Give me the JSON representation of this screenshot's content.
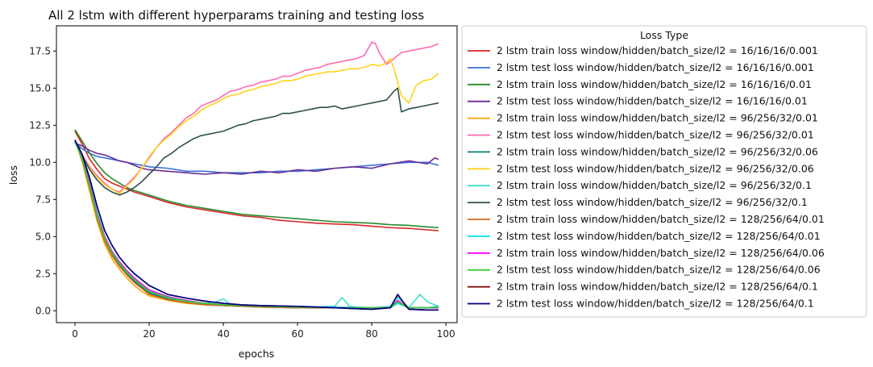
{
  "chart_data": {
    "type": "line",
    "title": "All 2 lstm with different hyperparams training and testing loss",
    "xlabel": "epochs",
    "ylabel": "loss",
    "xlim": [
      -5,
      103
    ],
    "ylim": [
      -0.8,
      19.2
    ],
    "xticks": [
      0,
      20,
      40,
      60,
      80,
      100
    ],
    "yticks": [
      0.0,
      2.5,
      5.0,
      7.5,
      10.0,
      12.5,
      15.0,
      17.5
    ],
    "xtick_labels": [
      "0",
      "20",
      "40",
      "60",
      "80",
      "100"
    ],
    "ytick_labels": [
      "0.0",
      "2.5",
      "5.0",
      "7.5",
      "10.0",
      "12.5",
      "15.0",
      "17.5"
    ],
    "grid": false,
    "legend_title": "Loss Type",
    "legend_placement": "outside-right",
    "series": [
      {
        "name": "2 lstm train loss window/hidden/batch_size/l2 = 16/16/16/0.001",
        "color": "#d62728",
        "x": [
          0,
          2,
          4,
          6,
          8,
          10,
          12,
          14,
          16,
          20,
          25,
          30,
          35,
          40,
          45,
          50,
          55,
          60,
          65,
          70,
          75,
          80,
          85,
          90,
          95,
          98
        ],
        "values": [
          12.1,
          11.2,
          10.2,
          9.5,
          8.9,
          8.6,
          8.4,
          8.2,
          8.0,
          7.7,
          7.3,
          7.0,
          6.8,
          6.6,
          6.4,
          6.3,
          6.1,
          6.0,
          5.9,
          5.85,
          5.8,
          5.7,
          5.6,
          5.55,
          5.45,
          5.4
        ]
      },
      {
        "name": "2 lstm test loss window/hidden/batch_size/l2  = 16/16/16/0.001",
        "color": "#3a6fd8",
        "x": [
          0,
          2,
          4,
          6,
          8,
          10,
          12,
          14,
          16,
          18,
          20,
          25,
          30,
          35,
          40,
          45,
          50,
          55,
          60,
          65,
          70,
          75,
          80,
          85,
          90,
          95,
          98
        ],
        "values": [
          11.3,
          10.9,
          10.6,
          10.4,
          10.3,
          10.2,
          10.1,
          10.0,
          9.9,
          9.8,
          9.7,
          9.6,
          9.4,
          9.4,
          9.3,
          9.3,
          9.3,
          9.4,
          9.4,
          9.5,
          9.6,
          9.7,
          9.8,
          9.9,
          10.0,
          10.0,
          9.8
        ]
      },
      {
        "name": "2 lstm train loss window/hidden/batch_size/l2 = 16/16/16/0.01",
        "color": "#2a8a2a",
        "x": [
          0,
          2,
          4,
          6,
          8,
          10,
          12,
          14,
          16,
          20,
          25,
          30,
          35,
          40,
          45,
          50,
          55,
          60,
          65,
          70,
          75,
          80,
          85,
          90,
          95,
          98
        ],
        "values": [
          12.2,
          11.4,
          10.6,
          9.9,
          9.3,
          8.9,
          8.6,
          8.3,
          8.1,
          7.8,
          7.4,
          7.1,
          6.9,
          6.7,
          6.5,
          6.4,
          6.3,
          6.2,
          6.1,
          6.0,
          5.95,
          5.9,
          5.8,
          5.75,
          5.65,
          5.6
        ]
      },
      {
        "name": "2 lstm test loss window/hidden/batch_size/l2  = 16/16/16/0.01",
        "color": "#6a2c91",
        "x": [
          0,
          2,
          4,
          6,
          8,
          10,
          12,
          14,
          16,
          18,
          20,
          25,
          30,
          35,
          40,
          45,
          50,
          55,
          60,
          65,
          70,
          75,
          80,
          85,
          90,
          95,
          97,
          98
        ],
        "values": [
          11.3,
          11.1,
          10.8,
          10.6,
          10.5,
          10.3,
          10.1,
          10.0,
          9.8,
          9.6,
          9.5,
          9.4,
          9.3,
          9.2,
          9.3,
          9.2,
          9.4,
          9.3,
          9.5,
          9.4,
          9.6,
          9.7,
          9.6,
          9.9,
          10.1,
          9.9,
          10.3,
          10.2
        ]
      },
      {
        "name": "2 lstm train loss window/hidden/batch_size/l2  = 96/256/32/0.01",
        "color": "#ffa500",
        "x": [
          0,
          2,
          4,
          6,
          8,
          10,
          12,
          14,
          16,
          18,
          20,
          25,
          30,
          35,
          40,
          45,
          50,
          60,
          70,
          80,
          85,
          87,
          90,
          95,
          98
        ],
        "values": [
          11.5,
          10.0,
          8.0,
          6.0,
          4.5,
          3.5,
          2.8,
          2.2,
          1.7,
          1.3,
          1.0,
          0.7,
          0.5,
          0.4,
          0.35,
          0.3,
          0.25,
          0.2,
          0.2,
          0.2,
          0.2,
          1.0,
          0.2,
          0.2,
          0.2
        ]
      },
      {
        "name": "2 lstm test loss window/hidden/batch_size/l2   = 96/256/32/0.01",
        "color": "#ff69b4",
        "x": [
          0,
          2,
          4,
          6,
          8,
          10,
          12,
          14,
          16,
          18,
          20,
          22,
          24,
          26,
          28,
          30,
          32,
          34,
          36,
          38,
          40,
          42,
          44,
          46,
          48,
          50,
          52,
          54,
          56,
          58,
          60,
          62,
          64,
          66,
          68,
          70,
          72,
          74,
          76,
          78,
          80,
          81,
          82,
          84,
          86,
          88,
          90,
          92,
          94,
          96,
          98
        ],
        "values": [
          11.5,
          10.5,
          9.7,
          9.1,
          8.6,
          8.2,
          8.0,
          8.5,
          9.0,
          9.6,
          10.3,
          11.0,
          11.6,
          12.0,
          12.5,
          13.0,
          13.3,
          13.8,
          14.0,
          14.2,
          14.5,
          14.8,
          14.9,
          15.1,
          15.2,
          15.4,
          15.5,
          15.6,
          15.8,
          15.8,
          16.0,
          16.2,
          16.3,
          16.4,
          16.6,
          16.7,
          16.8,
          16.9,
          17.0,
          17.2,
          18.1,
          18.0,
          17.4,
          16.6,
          17.0,
          17.4,
          17.5,
          17.6,
          17.7,
          17.8,
          18.0
        ]
      },
      {
        "name": "2 lstm train loss window/hidden/batch_size/l2  = 96/256/32/0.06",
        "color": "#0b7a75",
        "x": [
          0,
          2,
          4,
          6,
          8,
          10,
          12,
          14,
          16,
          18,
          20,
          25,
          30,
          35,
          40,
          45,
          50,
          60,
          70,
          80,
          85,
          87,
          90,
          95,
          98
        ],
        "values": [
          11.4,
          10.2,
          8.3,
          6.3,
          4.8,
          3.8,
          3.1,
          2.5,
          2.0,
          1.6,
          1.2,
          0.8,
          0.6,
          0.45,
          0.35,
          0.3,
          0.25,
          0.2,
          0.2,
          0.2,
          0.25,
          0.9,
          0.2,
          0.2,
          0.2
        ]
      },
      {
        "name": "2 lstm test loss window/hidden/batch_size/l2   = 96/256/32/0.06",
        "color": "#ffd21a",
        "x": [
          0,
          2,
          4,
          6,
          8,
          10,
          12,
          14,
          16,
          18,
          20,
          22,
          24,
          26,
          28,
          30,
          32,
          34,
          36,
          38,
          40,
          42,
          44,
          46,
          48,
          50,
          52,
          54,
          56,
          58,
          60,
          62,
          64,
          66,
          68,
          70,
          72,
          74,
          76,
          78,
          80,
          82,
          84,
          85,
          86,
          88,
          90,
          92,
          94,
          96,
          98
        ],
        "values": [
          11.5,
          10.4,
          9.6,
          9.0,
          8.5,
          8.2,
          7.9,
          8.4,
          8.9,
          9.6,
          10.4,
          11.0,
          11.5,
          11.9,
          12.4,
          12.8,
          13.1,
          13.5,
          13.8,
          14.0,
          14.3,
          14.5,
          14.6,
          14.8,
          14.9,
          15.1,
          15.2,
          15.3,
          15.5,
          15.5,
          15.6,
          15.8,
          15.9,
          16.0,
          16.1,
          16.1,
          16.2,
          16.3,
          16.3,
          16.4,
          16.6,
          16.5,
          16.7,
          17.0,
          16.3,
          14.5,
          14.0,
          15.2,
          15.5,
          15.6,
          16.0
        ]
      },
      {
        "name": "2 lstm train loss window/hidden/batch_size/l2  = 96/256/32/0.1",
        "color": "#40e0d0",
        "x": [
          0,
          2,
          4,
          6,
          8,
          10,
          12,
          14,
          16,
          18,
          20,
          25,
          30,
          35,
          38,
          40,
          42,
          45,
          50,
          55,
          60,
          65,
          70,
          72,
          74,
          76,
          80,
          85,
          87,
          90,
          93,
          95,
          98
        ],
        "values": [
          11.4,
          10.3,
          8.6,
          6.6,
          5.0,
          4.0,
          3.2,
          2.6,
          2.1,
          1.7,
          1.3,
          0.9,
          0.6,
          0.5,
          0.6,
          0.8,
          0.4,
          0.35,
          0.3,
          0.3,
          0.3,
          0.25,
          0.3,
          0.9,
          0.3,
          0.25,
          0.2,
          0.3,
          0.9,
          0.2,
          1.1,
          0.6,
          0.3
        ]
      },
      {
        "name": "2 lstm test loss window/hidden/batch_size/l2   = 96/256/32/0.1",
        "color": "#2f4f4f",
        "x": [
          0,
          2,
          4,
          6,
          8,
          10,
          12,
          14,
          16,
          18,
          20,
          22,
          24,
          26,
          28,
          30,
          32,
          34,
          36,
          38,
          40,
          42,
          44,
          46,
          48,
          50,
          52,
          54,
          56,
          58,
          60,
          62,
          64,
          66,
          68,
          70,
          72,
          74,
          76,
          78,
          80,
          82,
          84,
          86,
          87,
          88,
          90,
          92,
          94,
          96,
          98
        ],
        "values": [
          11.4,
          10.4,
          9.5,
          8.8,
          8.3,
          8.0,
          7.8,
          8.0,
          8.3,
          8.7,
          9.2,
          9.7,
          10.3,
          10.6,
          11.0,
          11.3,
          11.6,
          11.8,
          11.9,
          12.0,
          12.1,
          12.3,
          12.5,
          12.6,
          12.8,
          12.9,
          13.0,
          13.1,
          13.3,
          13.3,
          13.4,
          13.5,
          13.6,
          13.7,
          13.7,
          13.8,
          13.6,
          13.7,
          13.8,
          13.9,
          14.0,
          14.1,
          14.2,
          14.8,
          15.0,
          13.4,
          13.6,
          13.7,
          13.8,
          13.9,
          14.0
        ]
      },
      {
        "name": "2 lstm train loss window/hidden/batch_size/l2 = 128/256/64/0.01",
        "color": "#d2691e",
        "x": [
          0,
          2,
          4,
          6,
          8,
          10,
          12,
          14,
          16,
          18,
          20,
          25,
          30,
          35,
          40,
          45,
          50,
          60,
          70,
          80,
          85,
          87,
          89,
          90,
          95,
          98
        ],
        "values": [
          11.5,
          10.1,
          8.2,
          6.2,
          4.7,
          3.7,
          3.0,
          2.4,
          1.9,
          1.5,
          1.1,
          0.75,
          0.55,
          0.4,
          0.35,
          0.3,
          0.25,
          0.2,
          0.2,
          0.2,
          0.2,
          0.6,
          0.3,
          0.2,
          0.2,
          0.2
        ]
      },
      {
        "name": "2 lstm test loss window/hidden/batch_size/l2  = 128/256/64/0.01",
        "color": "#00e5ee",
        "x": [
          0,
          2,
          4,
          6,
          8,
          10,
          12,
          14,
          16,
          18,
          20,
          25,
          30,
          35,
          40,
          45,
          50,
          60,
          70,
          80,
          85,
          87,
          89,
          90,
          95,
          98
        ],
        "values": [
          11.4,
          10.2,
          8.4,
          6.4,
          4.9,
          3.9,
          3.2,
          2.6,
          2.1,
          1.7,
          1.3,
          0.9,
          0.65,
          0.5,
          0.4,
          0.35,
          0.3,
          0.25,
          0.25,
          0.2,
          0.2,
          0.5,
          0.3,
          0.2,
          0.2,
          0.3
        ]
      },
      {
        "name": "2 lstm train loss window/hidden/batch_size/l2 = 128/256/64/0.06",
        "color": "#ff00ff",
        "x": [
          0,
          2,
          4,
          6,
          8,
          10,
          12,
          14,
          16,
          18,
          20,
          25,
          30,
          35,
          40,
          45,
          50,
          60,
          70,
          80,
          85,
          87,
          89,
          90,
          95,
          98
        ],
        "values": [
          11.5,
          10.3,
          8.5,
          6.5,
          5.0,
          4.0,
          3.3,
          2.7,
          2.2,
          1.8,
          1.4,
          0.95,
          0.7,
          0.5,
          0.4,
          0.35,
          0.3,
          0.25,
          0.2,
          0.2,
          0.2,
          0.7,
          0.3,
          0.2,
          0.2,
          0.2
        ]
      },
      {
        "name": "2 lstm test loss window/hidden/batch_size/l2  = 128/256/64/0.06",
        "color": "#32cd32",
        "x": [
          0,
          2,
          4,
          6,
          8,
          10,
          12,
          14,
          16,
          18,
          20,
          25,
          30,
          35,
          40,
          45,
          50,
          60,
          70,
          80,
          85,
          87,
          89,
          90,
          95,
          98
        ],
        "values": [
          11.4,
          10.2,
          8.4,
          6.4,
          4.9,
          3.9,
          3.2,
          2.6,
          2.1,
          1.7,
          1.3,
          0.9,
          0.65,
          0.5,
          0.4,
          0.35,
          0.3,
          0.25,
          0.2,
          0.2,
          0.2,
          0.6,
          0.3,
          0.2,
          0.2,
          0.25
        ]
      },
      {
        "name": "2 lstm train loss window/hidden/batch_size/l2 = 128/256/64/0.1",
        "color": "#7b0000",
        "x": [
          0,
          2,
          4,
          6,
          8,
          10,
          12,
          14,
          16,
          18,
          20,
          25,
          30,
          35,
          40,
          45,
          50,
          60,
          70,
          75,
          80,
          85,
          87,
          89,
          90,
          95,
          98
        ],
        "values": [
          11.5,
          10.5,
          8.9,
          7.0,
          5.4,
          4.4,
          3.6,
          3.0,
          2.5,
          2.1,
          1.7,
          1.1,
          0.85,
          0.65,
          0.5,
          0.4,
          0.35,
          0.3,
          0.2,
          0.15,
          0.1,
          0.2,
          1.1,
          0.4,
          0.1,
          0.05,
          0.05
        ]
      },
      {
        "name": "2 lstm test loss window/hidden/batch_size/l2  = 128/256/64/0.1",
        "color": "#000080",
        "x": [
          0,
          2,
          4,
          6,
          8,
          10,
          12,
          14,
          16,
          18,
          20,
          25,
          30,
          35,
          40,
          45,
          50,
          60,
          70,
          75,
          80,
          85,
          87,
          89,
          90,
          95,
          98
        ],
        "values": [
          11.5,
          10.5,
          8.9,
          7.0,
          5.4,
          4.4,
          3.6,
          3.0,
          2.5,
          2.1,
          1.7,
          1.1,
          0.85,
          0.65,
          0.5,
          0.4,
          0.35,
          0.3,
          0.2,
          0.15,
          0.1,
          0.2,
          1.1,
          0.4,
          0.1,
          0.05,
          0.05
        ]
      }
    ]
  }
}
